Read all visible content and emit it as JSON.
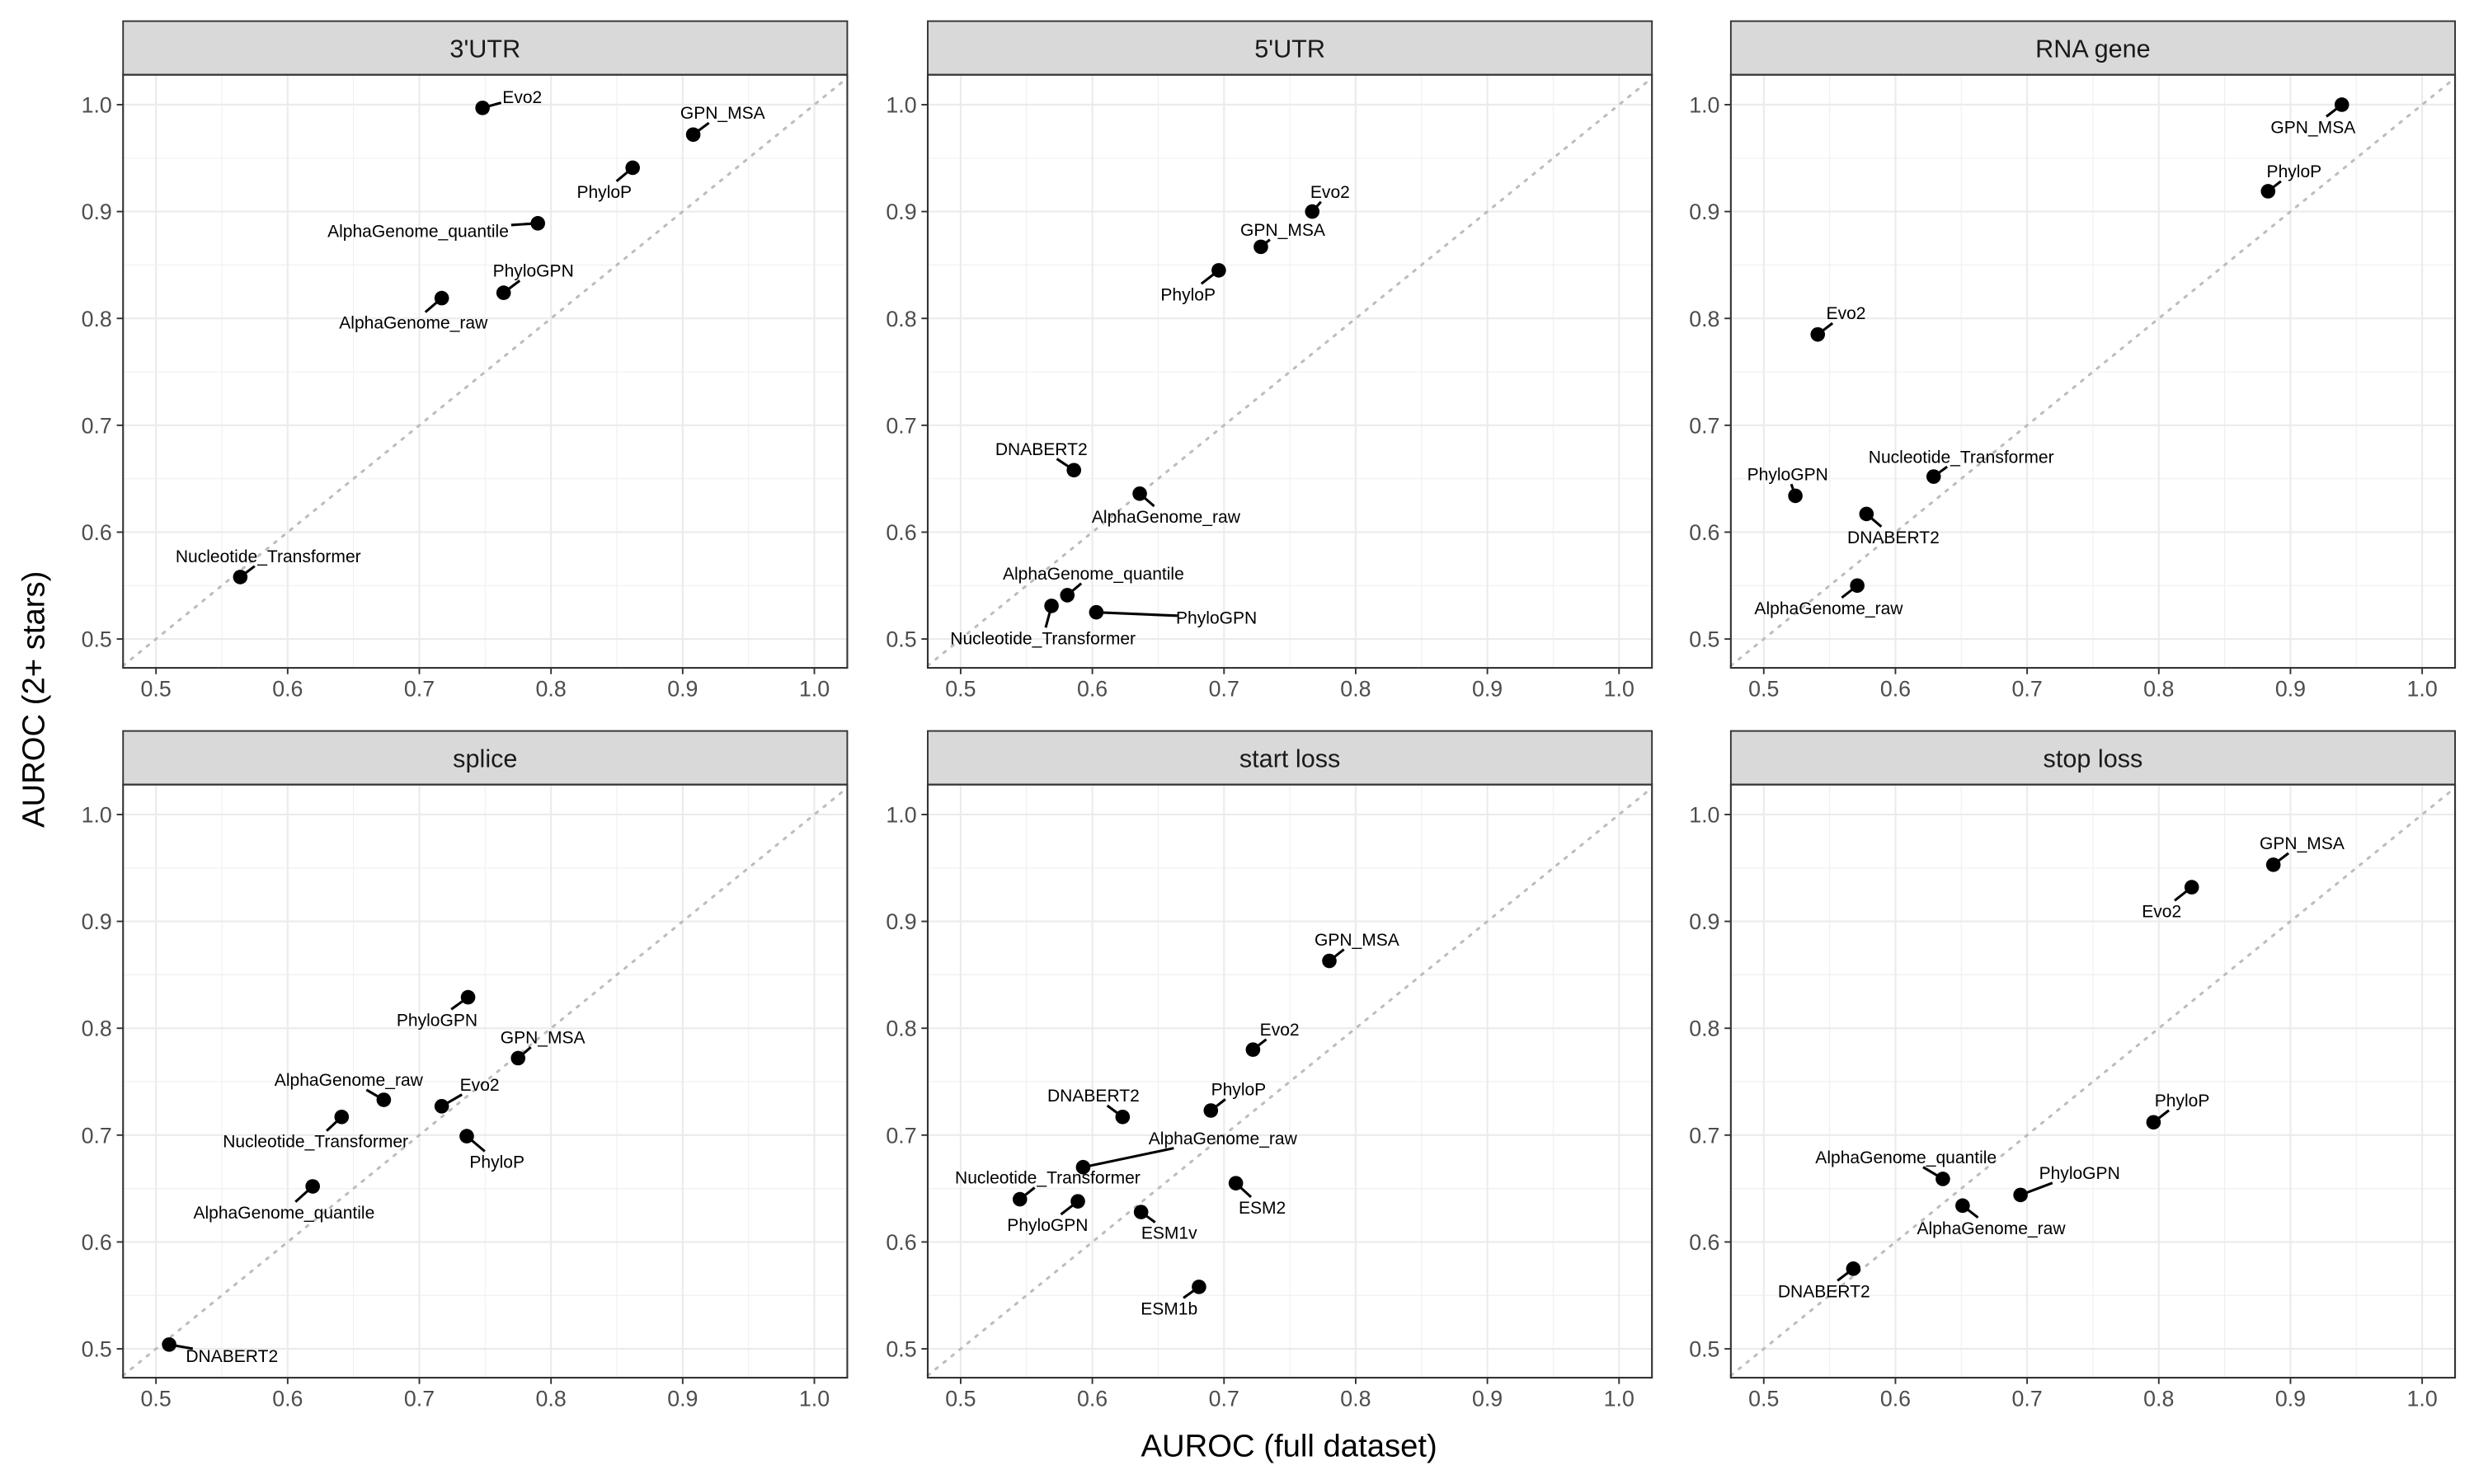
{
  "chart_data": {
    "type": "scatter",
    "xlabel": "AUROC (full dataset)",
    "ylabel": "AUROC (2+ stars)",
    "xlim": [
      0.475,
      1.025
    ],
    "ylim": [
      0.473,
      1.028
    ],
    "xticks": [
      "0.5",
      "0.6",
      "0.7",
      "0.8",
      "0.9",
      "1.0"
    ],
    "yticks": [
      "0.5",
      "0.6",
      "0.7",
      "0.8",
      "0.9",
      "1.0"
    ],
    "grid": true,
    "reference_line": "y = x (dotted)",
    "point_color": "#000000",
    "strip_color": "#d9d9d9",
    "panels": [
      {
        "title": "3'UTR",
        "points": [
          {
            "label": "Evo2",
            "x": 0.748,
            "y": 0.997
          },
          {
            "label": "GPN_MSA",
            "x": 0.908,
            "y": 0.972
          },
          {
            "label": "PhyloP",
            "x": 0.862,
            "y": 0.941
          },
          {
            "label": "AlphaGenome_quantile",
            "x": 0.79,
            "y": 0.889
          },
          {
            "label": "PhyloGPN",
            "x": 0.764,
            "y": 0.824
          },
          {
            "label": "AlphaGenome_raw",
            "x": 0.717,
            "y": 0.819
          },
          {
            "label": "Nucleotide_Transformer",
            "x": 0.564,
            "y": 0.558
          }
        ]
      },
      {
        "title": "5'UTR",
        "points": [
          {
            "label": "Evo2",
            "x": 0.767,
            "y": 0.9
          },
          {
            "label": "GPN_MSA",
            "x": 0.728,
            "y": 0.867
          },
          {
            "label": "PhyloP",
            "x": 0.696,
            "y": 0.845
          },
          {
            "label": "DNABERT2",
            "x": 0.586,
            "y": 0.658
          },
          {
            "label": "AlphaGenome_raw",
            "x": 0.636,
            "y": 0.636
          },
          {
            "label": "AlphaGenome_quantile",
            "x": 0.581,
            "y": 0.541
          },
          {
            "label": "Nucleotide_Transformer",
            "x": 0.569,
            "y": 0.531
          },
          {
            "label": "PhyloGPN",
            "x": 0.603,
            "y": 0.525
          }
        ]
      },
      {
        "title": "RNA gene",
        "points": [
          {
            "label": "GPN_MSA",
            "x": 0.939,
            "y": 1.0
          },
          {
            "label": "PhyloP",
            "x": 0.883,
            "y": 0.919
          },
          {
            "label": "Evo2",
            "x": 0.541,
            "y": 0.785
          },
          {
            "label": "Nucleotide_Transformer",
            "x": 0.629,
            "y": 0.652
          },
          {
            "label": "PhyloGPN",
            "x": 0.524,
            "y": 0.634
          },
          {
            "label": "DNABERT2",
            "x": 0.578,
            "y": 0.617
          },
          {
            "label": "AlphaGenome_raw",
            "x": 0.571,
            "y": 0.55
          }
        ]
      },
      {
        "title": "splice",
        "points": [
          {
            "label": "PhyloGPN",
            "x": 0.737,
            "y": 0.829
          },
          {
            "label": "GPN_MSA",
            "x": 0.775,
            "y": 0.772
          },
          {
            "label": "AlphaGenome_raw",
            "x": 0.673,
            "y": 0.733
          },
          {
            "label": "Evo2",
            "x": 0.717,
            "y": 0.727
          },
          {
            "label": "Nucleotide_Transformer",
            "x": 0.641,
            "y": 0.717
          },
          {
            "label": "PhyloP",
            "x": 0.736,
            "y": 0.699
          },
          {
            "label": "AlphaGenome_quantile",
            "x": 0.619,
            "y": 0.652
          },
          {
            "label": "DNABERT2",
            "x": 0.51,
            "y": 0.504
          }
        ]
      },
      {
        "title": "start loss",
        "points": [
          {
            "label": "GPN_MSA",
            "x": 0.78,
            "y": 0.863
          },
          {
            "label": "Evo2",
            "x": 0.722,
            "y": 0.78
          },
          {
            "label": "PhyloP",
            "x": 0.69,
            "y": 0.723
          },
          {
            "label": "DNABERT2",
            "x": 0.623,
            "y": 0.717
          },
          {
            "label": "AlphaGenome_raw",
            "x": 0.593,
            "y": 0.67
          },
          {
            "label": "ESM2",
            "x": 0.709,
            "y": 0.655
          },
          {
            "label": "Nucleotide_Transformer",
            "x": 0.545,
            "y": 0.64
          },
          {
            "label": "PhyloGPN",
            "x": 0.589,
            "y": 0.638
          },
          {
            "label": "ESM1v",
            "x": 0.637,
            "y": 0.628
          },
          {
            "label": "ESM1b",
            "x": 0.681,
            "y": 0.558
          }
        ]
      },
      {
        "title": "stop loss",
        "points": [
          {
            "label": "GPN_MSA",
            "x": 0.887,
            "y": 0.953
          },
          {
            "label": "Evo2",
            "x": 0.825,
            "y": 0.932
          },
          {
            "label": "PhyloP",
            "x": 0.796,
            "y": 0.712
          },
          {
            "label": "AlphaGenome_quantile",
            "x": 0.636,
            "y": 0.659
          },
          {
            "label": "PhyloGPN",
            "x": 0.695,
            "y": 0.644
          },
          {
            "label": "AlphaGenome_raw",
            "x": 0.651,
            "y": 0.634
          },
          {
            "label": "DNABERT2",
            "x": 0.568,
            "y": 0.575
          }
        ]
      }
    ]
  }
}
